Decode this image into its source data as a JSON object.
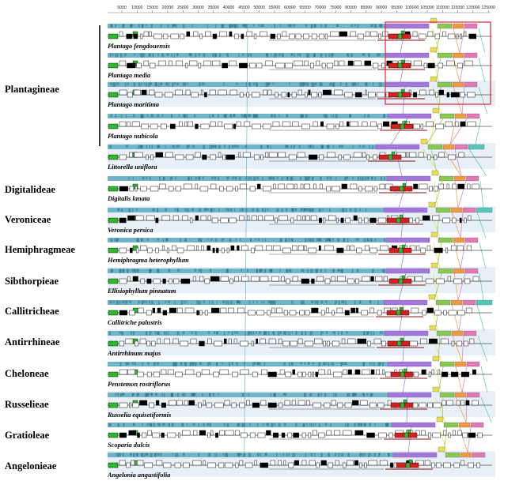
{
  "axis": {
    "ticks": [
      "5000",
      "10000",
      "15000",
      "20000",
      "25000",
      "30000",
      "35000",
      "40000",
      "45000",
      "50000",
      "55000",
      "60000",
      "65000",
      "70000",
      "75000",
      "80000",
      "85000",
      "90000",
      "95000",
      "100000",
      "105000",
      "110000",
      "115000",
      "120000",
      "125000"
    ]
  },
  "tribes": [
    {
      "name": "Plantagineae",
      "species": [
        "Plantago fengdouensis",
        "Plantago media",
        "Plantago maritima",
        "Plantago nubicola",
        "Littorella uniflora"
      ]
    },
    {
      "name": "Digitalideae",
      "species": [
        "Digitalis lanata"
      ]
    },
    {
      "name": "Veroniceae",
      "species": [
        "Veronica persica"
      ]
    },
    {
      "name": "Hemiphragmeae",
      "species": [
        "Hemiphragma heterophyllum"
      ]
    },
    {
      "name": "Sibthorpieae",
      "species": [
        "Ellisiophyllum pinnatum"
      ]
    },
    {
      "name": "Callitricheae",
      "species": [
        "Callitriche palustris"
      ]
    },
    {
      "name": "Antirrhineae",
      "species": [
        "Antirrhinum majus"
      ]
    },
    {
      "name": "Cheloneae",
      "species": [
        "Penstemon rostriflorus"
      ]
    },
    {
      "name": "Russelieae",
      "species": [
        "Russelia equisetiformis"
      ]
    },
    {
      "name": "Gratioleae",
      "species": [
        "Scoparia dulcis"
      ]
    },
    {
      "name": "Angelonieae",
      "species": [
        "Angelonia angustifolia"
      ]
    }
  ],
  "colors": {
    "lcb_main": "#6fb4c8",
    "lcb_purple": "#a478d8",
    "lcb_yellow": "#e6e04a",
    "lcb_green": "#86c94b",
    "lcb_orange": "#f09a3e",
    "lcb_pink": "#e07ab0",
    "lcb_teal": "#56c7b0",
    "gene_green": "#2eb82e",
    "gene_red": "#d42020",
    "highlight_box": "#e0243a",
    "band": "#dde8f4"
  }
}
